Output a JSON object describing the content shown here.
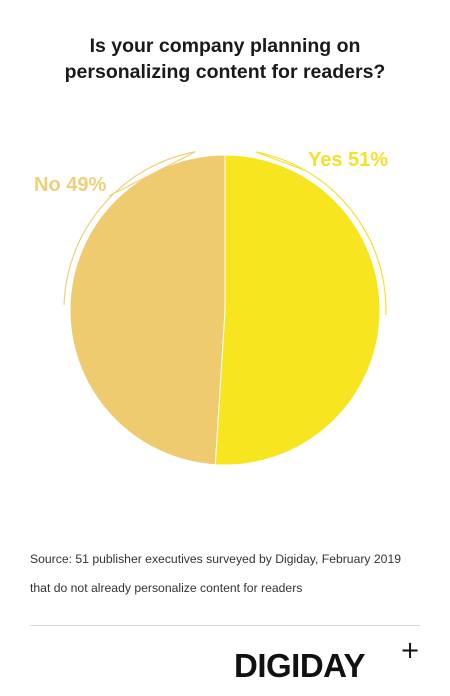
{
  "chart_data": {
    "type": "pie",
    "title_lines": [
      "Is your company planning on",
      "personalizing content for readers?"
    ],
    "slices": [
      {
        "label": "Yes",
        "value": 51,
        "display": "Yes 51%",
        "color": "#f7e51f",
        "label_color": "#f5e12a"
      },
      {
        "label": "No",
        "value": 49,
        "display": "No 49%",
        "color": "#eecb6e",
        "label_color": "#f0cf7a"
      }
    ],
    "legend": "none"
  },
  "source": {
    "line1": "Source: 51 publisher executives surveyed by Digiday,  February 2019",
    "line2": "that do not already personalize content for readers"
  },
  "brand": {
    "name": "DIGIDAY",
    "plus": "+"
  }
}
